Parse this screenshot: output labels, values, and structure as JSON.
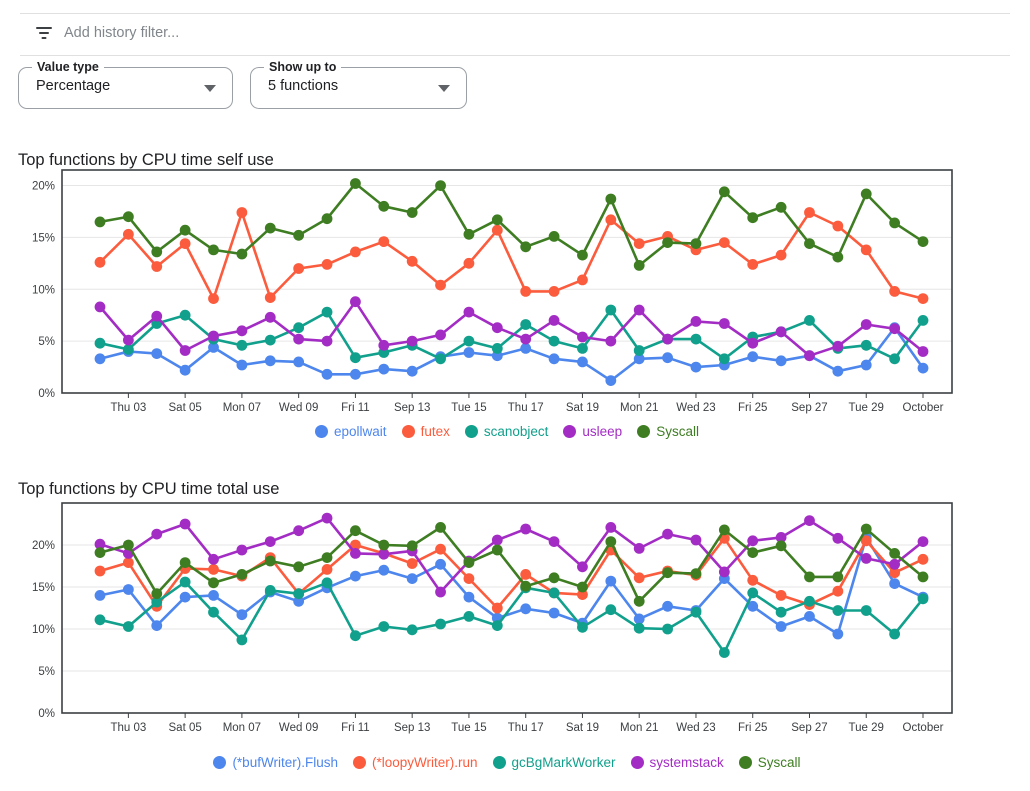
{
  "filter_bar": {
    "icon": "filter-list-icon",
    "placeholder": "Add history filter..."
  },
  "controls": {
    "value_type": {
      "label": "Value type",
      "value": "Percentage"
    },
    "show_up_to": {
      "label": "Show up to",
      "value": "5 functions"
    }
  },
  "colors": {
    "blue": "#4d86ec",
    "orange": "#fb5c3d",
    "teal": "#11a08c",
    "purple": "#a32dc4",
    "green": "#3e7d22",
    "axis": "#3c4043",
    "grid": "#e6e6e6",
    "tick_text": "#3c4043"
  },
  "chart_data": [
    {
      "type": "line",
      "title": "Top functions by CPU time self use",
      "xlabel": "",
      "ylabel": "",
      "ylim": [
        0,
        21.5
      ],
      "grid": "horizontal",
      "legend_position": "bottom",
      "y_tick_labels": [
        "0%",
        "5%",
        "10%",
        "15%",
        "20%"
      ],
      "x_tick_labels": [
        "Thu 03",
        "Sat 05",
        "Mon 07",
        "Wed 09",
        "Fri 11",
        "Sep 13",
        "Tue 15",
        "Thu 17",
        "Sat 19",
        "Mon 21",
        "Wed 23",
        "Fri 25",
        "Sep 27",
        "Tue 29",
        "October"
      ],
      "x_tick_indices": [
        1,
        3,
        5,
        7,
        9,
        11,
        13,
        15,
        17,
        19,
        21,
        23,
        25,
        27,
        29
      ],
      "series": [
        {
          "name": "epollwait",
          "color_key": "blue",
          "values": [
            3.3,
            4.0,
            3.8,
            2.2,
            4.4,
            2.7,
            3.1,
            3.0,
            1.8,
            1.8,
            2.3,
            2.1,
            3.5,
            3.9,
            3.6,
            4.3,
            3.3,
            3.0,
            1.2,
            3.3,
            3.4,
            2.5,
            2.7,
            3.5,
            3.1,
            3.6,
            2.1,
            2.7,
            6.3,
            2.4
          ]
        },
        {
          "name": "futex",
          "color_key": "orange",
          "values": [
            12.6,
            15.3,
            12.2,
            14.4,
            9.1,
            17.4,
            9.2,
            12.0,
            12.4,
            13.6,
            14.6,
            12.7,
            10.4,
            12.5,
            15.7,
            9.8,
            9.8,
            10.9,
            16.7,
            14.4,
            15.1,
            13.8,
            14.5,
            12.4,
            13.3,
            17.4,
            16.1,
            13.8,
            9.8,
            9.1
          ]
        },
        {
          "name": "scanobject",
          "color_key": "teal",
          "values": [
            4.8,
            4.2,
            6.7,
            7.5,
            5.2,
            4.6,
            5.1,
            6.3,
            7.8,
            3.4,
            3.9,
            4.6,
            3.3,
            5.0,
            4.3,
            6.6,
            5.0,
            4.3,
            8.0,
            4.1,
            5.2,
            5.2,
            3.3,
            5.4,
            5.9,
            7.0,
            4.3,
            4.6,
            3.3,
            7.0
          ]
        },
        {
          "name": "usleep",
          "color_key": "purple",
          "values": [
            8.3,
            5.1,
            7.4,
            4.1,
            5.5,
            6.0,
            7.3,
            5.2,
            5.0,
            8.8,
            4.6,
            5.0,
            5.6,
            7.8,
            6.3,
            5.2,
            7.0,
            5.4,
            5.0,
            8.0,
            5.2,
            6.9,
            6.7,
            4.8,
            5.9,
            3.6,
            4.5,
            6.6,
            6.2,
            4.0
          ]
        },
        {
          "name": "Syscall",
          "color_key": "green",
          "values": [
            16.5,
            17.0,
            13.6,
            15.7,
            13.8,
            13.4,
            15.9,
            15.2,
            16.8,
            20.2,
            18.0,
            17.4,
            20.0,
            15.3,
            16.7,
            14.1,
            15.1,
            13.3,
            18.7,
            12.3,
            14.5,
            14.4,
            19.4,
            16.9,
            17.9,
            14.4,
            13.1,
            19.2,
            16.4,
            14.6
          ]
        }
      ]
    },
    {
      "type": "line",
      "title": "Top functions by CPU time total use",
      "xlabel": "",
      "ylabel": "",
      "ylim": [
        0,
        25
      ],
      "grid": "horizontal",
      "legend_position": "bottom",
      "y_tick_labels": [
        "0%",
        "5%",
        "10%",
        "15%",
        "20%"
      ],
      "x_tick_labels": [
        "Thu 03",
        "Sat 05",
        "Mon 07",
        "Wed 09",
        "Fri 11",
        "Sep 13",
        "Tue 15",
        "Thu 17",
        "Sat 19",
        "Mon 21",
        "Wed 23",
        "Fri 25",
        "Sep 27",
        "Tue 29",
        "October"
      ],
      "x_tick_indices": [
        1,
        3,
        5,
        7,
        9,
        11,
        13,
        15,
        17,
        19,
        21,
        23,
        25,
        27,
        29
      ],
      "series": [
        {
          "name": "(*bufWriter).Flush",
          "color_key": "blue",
          "values": [
            14.0,
            14.7,
            10.4,
            13.8,
            14.0,
            11.7,
            14.4,
            13.3,
            14.9,
            16.3,
            17.0,
            16.0,
            17.7,
            13.8,
            11.3,
            12.4,
            11.9,
            10.7,
            15.7,
            11.2,
            12.7,
            12.2,
            16.0,
            12.7,
            10.3,
            11.5,
            9.4,
            20.9,
            15.4,
            13.8
          ]
        },
        {
          "name": "(*loopyWriter).run",
          "color_key": "orange",
          "values": [
            16.9,
            17.9,
            12.7,
            17.2,
            17.1,
            16.3,
            18.5,
            14.2,
            17.1,
            20.0,
            19.0,
            17.8,
            19.5,
            16.0,
            12.5,
            16.5,
            14.3,
            14.1,
            19.4,
            16.1,
            16.9,
            16.4,
            20.8,
            15.8,
            14.0,
            12.9,
            14.5,
            20.5,
            16.7,
            18.3
          ]
        },
        {
          "name": "gcBgMarkWorker",
          "color_key": "teal",
          "values": [
            11.1,
            10.3,
            13.2,
            15.6,
            12.0,
            8.7,
            14.6,
            14.2,
            15.5,
            9.2,
            10.3,
            9.9,
            10.6,
            11.5,
            10.4,
            14.9,
            14.3,
            10.2,
            12.3,
            10.1,
            10.0,
            12.0,
            7.2,
            14.3,
            12.0,
            13.3,
            12.2,
            12.2,
            9.4,
            13.6
          ]
        },
        {
          "name": "systemstack",
          "color_key": "purple",
          "values": [
            20.1,
            19.0,
            21.3,
            22.5,
            18.3,
            19.4,
            20.4,
            21.7,
            23.2,
            19.0,
            18.9,
            19.3,
            14.4,
            18.1,
            20.6,
            21.9,
            20.4,
            17.4,
            22.1,
            19.6,
            21.3,
            20.6,
            16.8,
            20.5,
            20.9,
            22.9,
            20.8,
            18.4,
            17.7,
            20.4
          ]
        },
        {
          "name": "Syscall",
          "color_key": "green",
          "values": [
            19.1,
            20.0,
            14.2,
            17.9,
            15.5,
            16.5,
            18.1,
            17.4,
            18.5,
            21.7,
            20.0,
            19.9,
            22.1,
            17.9,
            19.4,
            15.1,
            16.1,
            15.0,
            20.4,
            13.3,
            16.7,
            16.6,
            21.8,
            19.1,
            19.9,
            16.2,
            16.2,
            21.9,
            19.0,
            16.2
          ]
        }
      ]
    }
  ]
}
